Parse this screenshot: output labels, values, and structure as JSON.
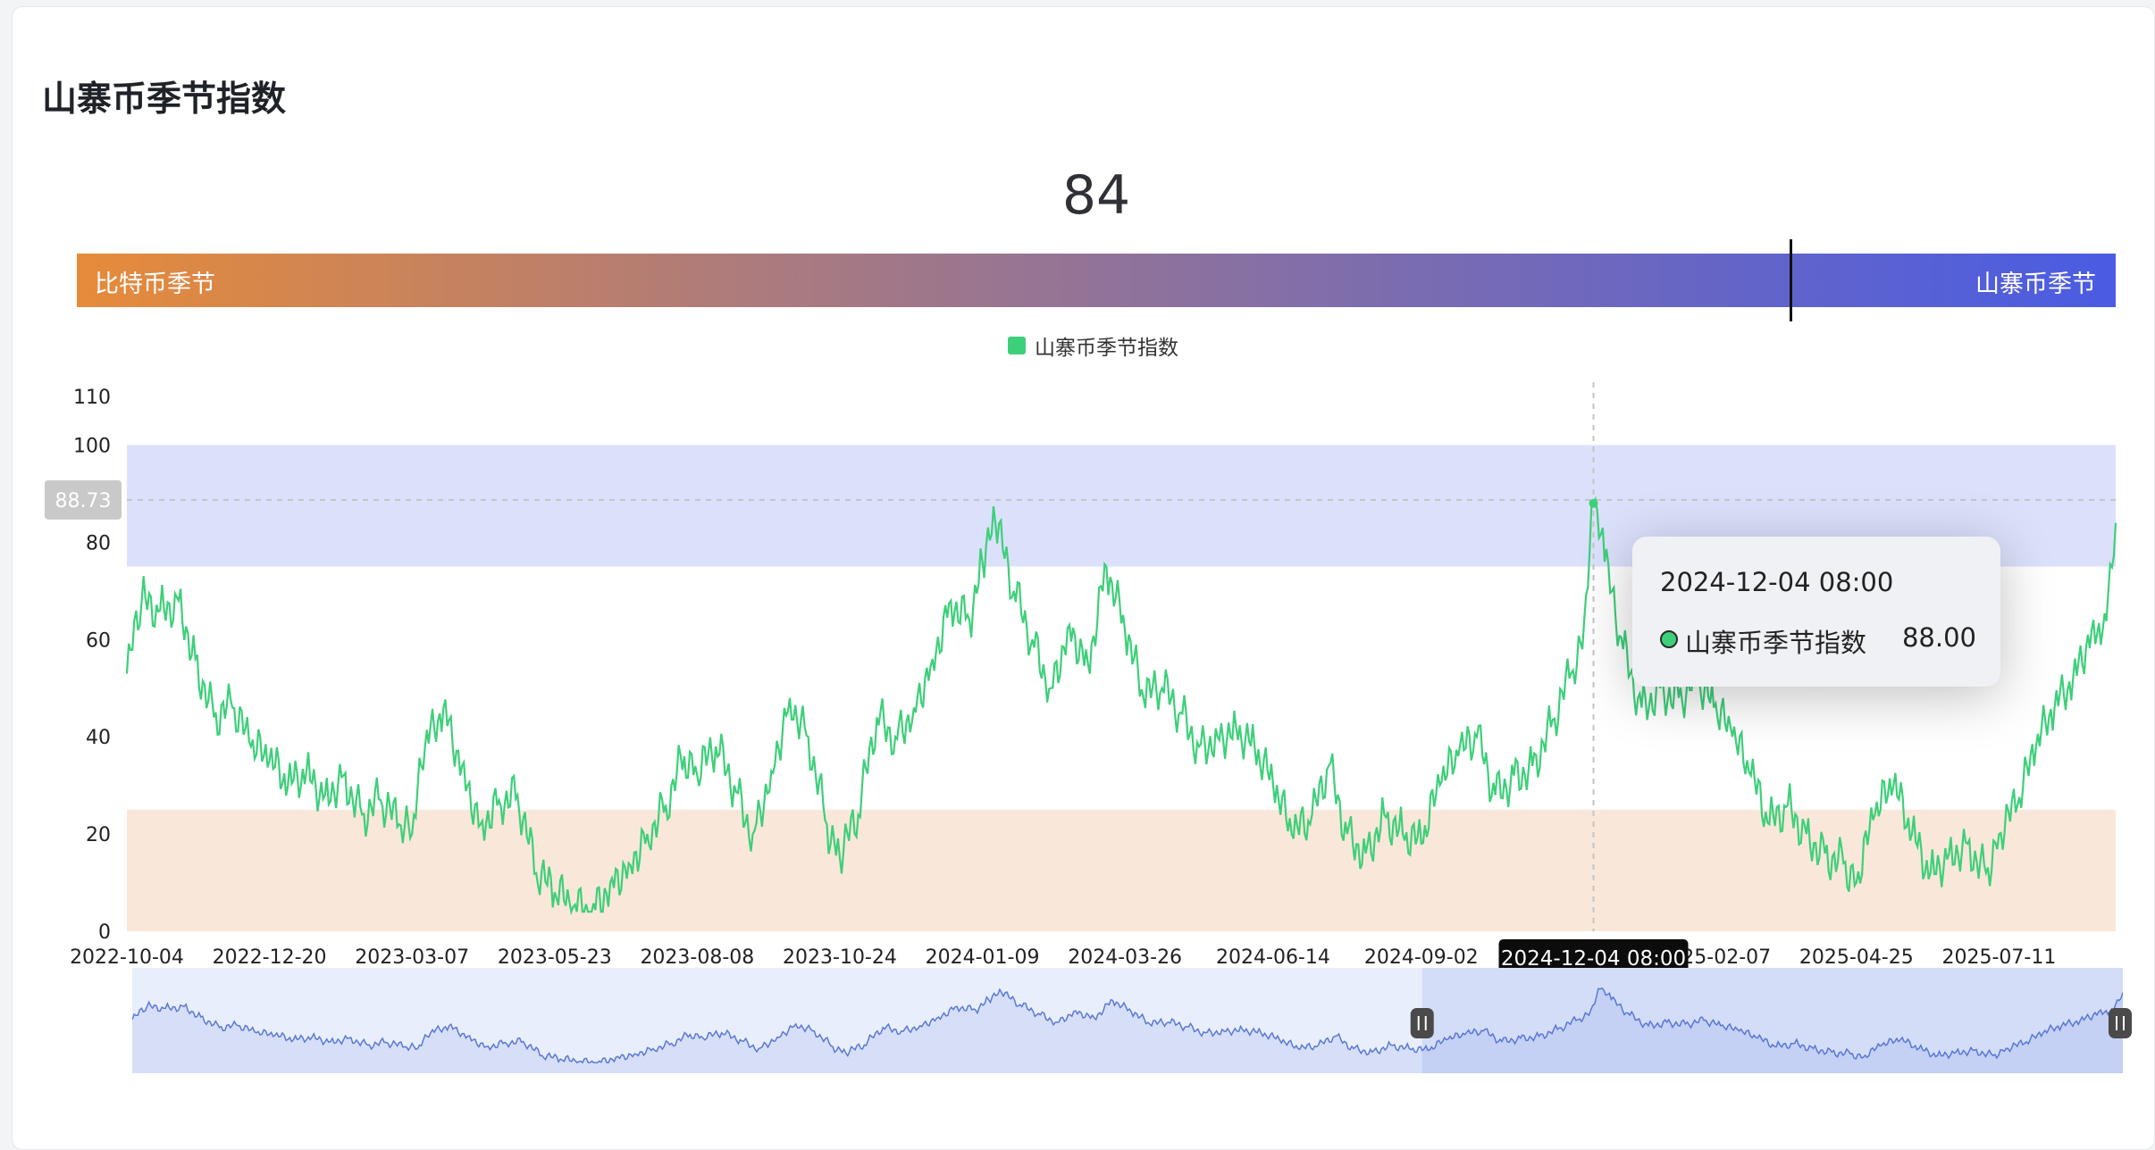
{
  "page": {
    "title": "山寨币季节指数"
  },
  "gauge": {
    "current_value": "84",
    "left_label": "比特币季节",
    "right_label": "山寨币季节",
    "value": 84,
    "min": 0,
    "max": 100
  },
  "legend": {
    "label": "山寨币季节指数",
    "color": "#3ecf7a"
  },
  "axis_pointer": {
    "y_label": "88.73",
    "x_label": "2024-12-04 08:00"
  },
  "tooltip": {
    "date": "2024-12-04 08:00",
    "series_name": "山寨币季节指数",
    "value": "88.00"
  },
  "chart_data": {
    "type": "line",
    "title": "",
    "xlabel": "",
    "ylabel": "",
    "ylim": [
      0,
      110
    ],
    "y_ticks": [
      "0",
      "20",
      "40",
      "60",
      "80",
      "100",
      "110"
    ],
    "x_ticks": [
      "2022-10-04",
      "2022-12-20",
      "2023-03-07",
      "2023-05-23",
      "2023-08-08",
      "2023-10-24",
      "2024-01-09",
      "2024-03-26",
      "2024-06-14",
      "2024-09-02",
      "2024-12-04 08:00",
      "2025-02-07",
      "2025-04-25",
      "2025-07-11"
    ],
    "x_range": [
      "2022-10-04",
      "2025-09-12"
    ],
    "grid": false,
    "legend_position": "top-center",
    "bands": [
      {
        "from": 75,
        "to": 100,
        "color": "#dce1fb"
      },
      {
        "from": 0,
        "to": 25,
        "color": "#f9e8da"
      }
    ],
    "colors": {
      "line": "#3ecf7a",
      "slider_line": "#5b79d6",
      "slider_fill": "#e6ecfb"
    },
    "series": [
      {
        "name": "山寨币季节指数",
        "points": [
          [
            "2022-10-04",
            53
          ],
          [
            "2022-10-12",
            68
          ],
          [
            "2022-10-22",
            66
          ],
          [
            "2022-11-01",
            68
          ],
          [
            "2022-11-10",
            56
          ],
          [
            "2022-11-20",
            44
          ],
          [
            "2022-11-30",
            46
          ],
          [
            "2022-12-10",
            38
          ],
          [
            "2022-12-20",
            35
          ],
          [
            "2022-12-30",
            30
          ],
          [
            "2023-01-09",
            33
          ],
          [
            "2023-01-19",
            28
          ],
          [
            "2023-01-29",
            32
          ],
          [
            "2023-02-08",
            24
          ],
          [
            "2023-02-18",
            27
          ],
          [
            "2023-02-28",
            22
          ],
          [
            "2023-03-07",
            20
          ],
          [
            "2023-03-14",
            38
          ],
          [
            "2023-03-24",
            46
          ],
          [
            "2023-04-03",
            34
          ],
          [
            "2023-04-13",
            22
          ],
          [
            "2023-04-23",
            27
          ],
          [
            "2023-05-03",
            28
          ],
          [
            "2023-05-13",
            12
          ],
          [
            "2023-05-23",
            8
          ],
          [
            "2023-06-02",
            5
          ],
          [
            "2023-06-12",
            4
          ],
          [
            "2023-06-22",
            10
          ],
          [
            "2023-07-02",
            14
          ],
          [
            "2023-07-12",
            20
          ],
          [
            "2023-07-22",
            26
          ],
          [
            "2023-08-01",
            36
          ],
          [
            "2023-08-08",
            32
          ],
          [
            "2023-08-18",
            38
          ],
          [
            "2023-08-28",
            30
          ],
          [
            "2023-09-07",
            20
          ],
          [
            "2023-09-17",
            33
          ],
          [
            "2023-09-27",
            48
          ],
          [
            "2023-10-07",
            40
          ],
          [
            "2023-10-17",
            22
          ],
          [
            "2023-10-24",
            15
          ],
          [
            "2023-11-03",
            24
          ],
          [
            "2023-11-13",
            44
          ],
          [
            "2023-11-23",
            40
          ],
          [
            "2023-12-03",
            46
          ],
          [
            "2023-12-13",
            56
          ],
          [
            "2023-12-23",
            68
          ],
          [
            "2024-01-02",
            64
          ],
          [
            "2024-01-09",
            76
          ],
          [
            "2024-01-16",
            84
          ],
          [
            "2024-01-26",
            70
          ],
          [
            "2024-02-05",
            60
          ],
          [
            "2024-02-15",
            50
          ],
          [
            "2024-02-25",
            63
          ],
          [
            "2024-03-06",
            55
          ],
          [
            "2024-03-16",
            75
          ],
          [
            "2024-03-26",
            62
          ],
          [
            "2024-04-05",
            48
          ],
          [
            "2024-04-15",
            50
          ],
          [
            "2024-04-25",
            45
          ],
          [
            "2024-05-05",
            38
          ],
          [
            "2024-05-15",
            40
          ],
          [
            "2024-05-25",
            42
          ],
          [
            "2024-06-04",
            38
          ],
          [
            "2024-06-14",
            30
          ],
          [
            "2024-06-24",
            20
          ],
          [
            "2024-07-04",
            22
          ],
          [
            "2024-07-14",
            34
          ],
          [
            "2024-07-24",
            20
          ],
          [
            "2024-08-03",
            16
          ],
          [
            "2024-08-13",
            24
          ],
          [
            "2024-08-23",
            20
          ],
          [
            "2024-09-02",
            18
          ],
          [
            "2024-09-12",
            30
          ],
          [
            "2024-09-22",
            36
          ],
          [
            "2024-10-02",
            40
          ],
          [
            "2024-10-12",
            28
          ],
          [
            "2024-10-22",
            32
          ],
          [
            "2024-11-01",
            34
          ],
          [
            "2024-11-11",
            42
          ],
          [
            "2024-11-21",
            52
          ],
          [
            "2024-11-28",
            58
          ],
          [
            "2024-12-04",
            88
          ],
          [
            "2024-12-10",
            76
          ],
          [
            "2024-12-20",
            58
          ],
          [
            "2024-12-30",
            46
          ],
          [
            "2025-01-09",
            50
          ],
          [
            "2025-01-19",
            48
          ],
          [
            "2025-01-29",
            52
          ],
          [
            "2025-02-07",
            46
          ],
          [
            "2025-02-17",
            40
          ],
          [
            "2025-02-27",
            32
          ],
          [
            "2025-03-09",
            22
          ],
          [
            "2025-03-19",
            26
          ],
          [
            "2025-03-29",
            20
          ],
          [
            "2025-04-08",
            16
          ],
          [
            "2025-04-18",
            14
          ],
          [
            "2025-04-25",
            10
          ],
          [
            "2025-05-05",
            24
          ],
          [
            "2025-05-15",
            30
          ],
          [
            "2025-05-25",
            20
          ],
          [
            "2025-06-04",
            12
          ],
          [
            "2025-06-14",
            16
          ],
          [
            "2025-06-24",
            18
          ],
          [
            "2025-07-04",
            12
          ],
          [
            "2025-07-11",
            20
          ],
          [
            "2025-07-21",
            26
          ],
          [
            "2025-07-31",
            38
          ],
          [
            "2025-08-10",
            46
          ],
          [
            "2025-08-20",
            52
          ],
          [
            "2025-08-30",
            62
          ],
          [
            "2025-09-05",
            62
          ],
          [
            "2025-09-12",
            84
          ]
        ]
      }
    ]
  },
  "slider": {
    "start_fraction": 0.648,
    "end_fraction": 1.0
  }
}
